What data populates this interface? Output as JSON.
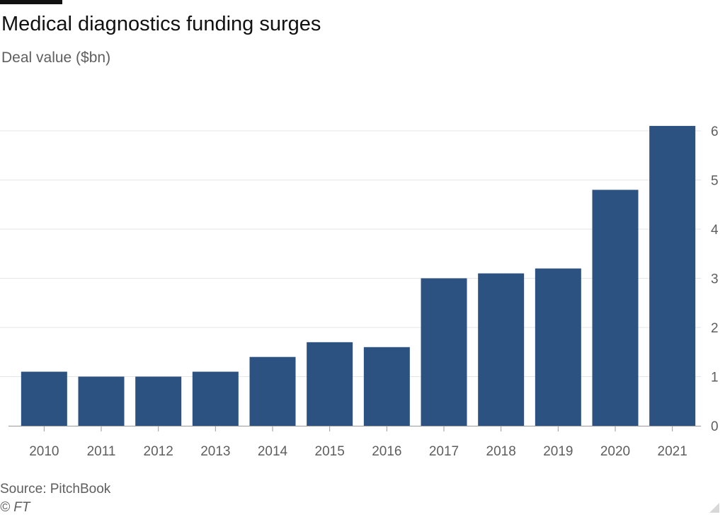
{
  "header": {
    "title": "Medical diagnostics funding surges",
    "subtitle": "Deal value ($bn)"
  },
  "footer": {
    "source": "Source: PitchBook",
    "credit": "© FT"
  },
  "colors": {
    "bar": "#2c5282",
    "grid": "#e6e6e6",
    "axis": "#999999",
    "text": "#5e5e5e"
  },
  "chart_data": {
    "type": "bar",
    "categories": [
      "2010",
      "2011",
      "2012",
      "2013",
      "2014",
      "2015",
      "2016",
      "2017",
      "2018",
      "2019",
      "2020",
      "2021"
    ],
    "values": [
      1.1,
      1.0,
      1.0,
      1.1,
      1.4,
      1.7,
      1.6,
      3.0,
      3.1,
      3.2,
      4.8,
      6.1
    ],
    "title": "Medical diagnostics funding surges",
    "ylabel": "Deal value ($bn)",
    "xlabel": "",
    "ylim": [
      0,
      6
    ],
    "yticks": [
      0,
      1,
      2,
      3,
      4,
      5,
      6
    ],
    "y_axis_side": "right",
    "grid": true
  }
}
